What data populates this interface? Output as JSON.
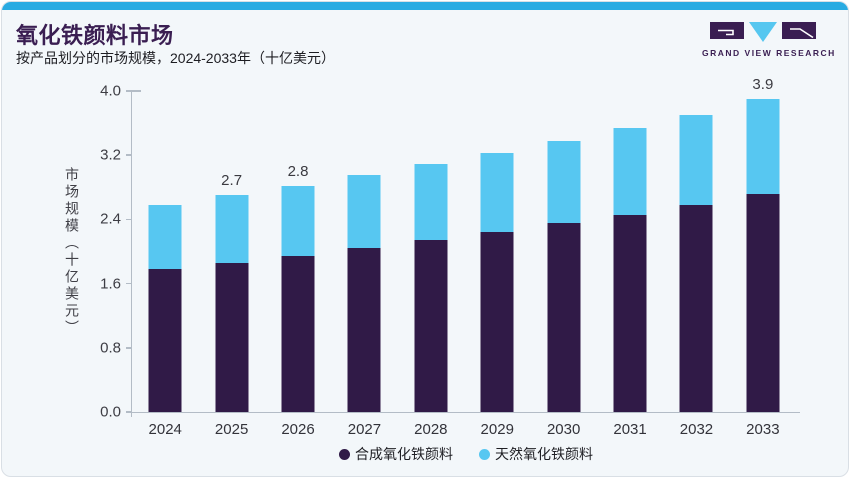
{
  "card": {
    "background": "#f3f7fa",
    "border_color": "#d9dfe5",
    "top_bar_color": "#29abe2"
  },
  "header": {
    "title": "氧化铁颜料市场",
    "subtitle": "按产品划分的市场规模，2024-2033年（十亿美元）"
  },
  "logo": {
    "name": "GRAND VIEW RESEARCH",
    "mark_color": "#3a1e52",
    "accent_color": "#56c7f0"
  },
  "chart_data": {
    "type": "bar",
    "stacked": true,
    "title": "氧化铁颜料市场",
    "subtitle": "按产品划分的市场规模，2024-2033年（十亿美元）",
    "ylabel": "市场规模（十亿美元）",
    "xlabel": "",
    "ylim": [
      0,
      4.0
    ],
    "yticks": [
      "0.0",
      "0.8",
      "1.6",
      "2.4",
      "3.2",
      "4.0"
    ],
    "grid": false,
    "legend_position": "bottom",
    "categories": [
      "2024",
      "2025",
      "2026",
      "2027",
      "2028",
      "2029",
      "2030",
      "2031",
      "2032",
      "2033"
    ],
    "series": [
      {
        "name": "合成氧化铁颜料",
        "color": "#301a47",
        "values": [
          1.78,
          1.86,
          1.95,
          2.04,
          2.14,
          2.24,
          2.35,
          2.46,
          2.58,
          2.72
        ]
      },
      {
        "name": "天然氧化铁颜料",
        "color": "#57c7f1",
        "values": [
          0.8,
          0.84,
          0.87,
          0.91,
          0.95,
          0.99,
          1.03,
          1.08,
          1.12,
          1.18
        ]
      }
    ],
    "totals": [
      2.58,
      2.7,
      2.82,
      2.95,
      3.09,
      3.23,
      3.38,
      3.54,
      3.7,
      3.9
    ],
    "total_labels": [
      "",
      "2.7",
      "2.8",
      "",
      "",
      "",
      "",
      "",
      "",
      "3.9"
    ],
    "axis_color": "#b3bcc6"
  }
}
